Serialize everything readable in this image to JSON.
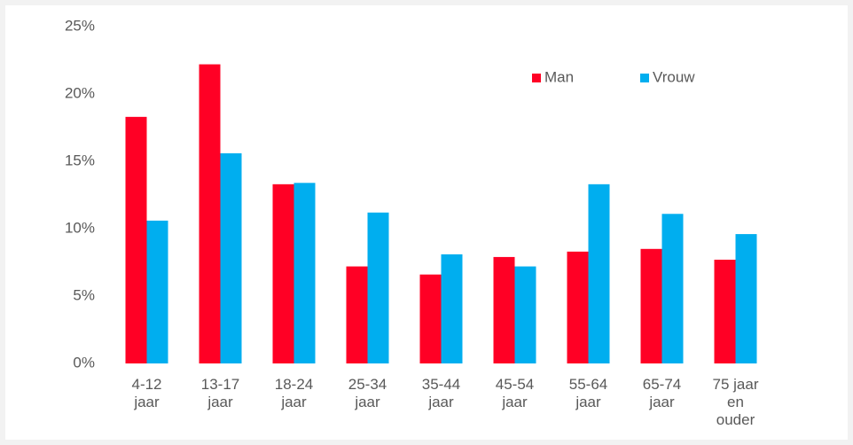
{
  "chart_data": {
    "type": "bar",
    "categories": [
      "4-12 jaar",
      "13-17 jaar",
      "18-24 jaar",
      "25-34 jaar",
      "35-44 jaar",
      "45-54 jaar",
      "55-64 jaar",
      "65-74 jaar",
      "75 jaar en ouder"
    ],
    "series": [
      {
        "name": "Man",
        "color": "#ff0025",
        "values": [
          18.3,
          22.2,
          13.3,
          7.2,
          6.6,
          7.9,
          8.3,
          8.5,
          7.7
        ]
      },
      {
        "name": "Vrouw",
        "color": "#00aeef",
        "values": [
          10.6,
          15.6,
          13.4,
          11.2,
          8.1,
          7.2,
          13.3,
          11.1,
          9.6
        ]
      }
    ],
    "ylim": [
      0,
      25
    ],
    "yticks": [
      {
        "value": 0,
        "label": "0%"
      },
      {
        "value": 5,
        "label": "5%"
      },
      {
        "value": 10,
        "label": "10%"
      },
      {
        "value": 15,
        "label": "15%"
      },
      {
        "value": 20,
        "label": "20%"
      },
      {
        "value": 25,
        "label": "25%"
      }
    ],
    "grid": false,
    "legend": "top-right"
  }
}
